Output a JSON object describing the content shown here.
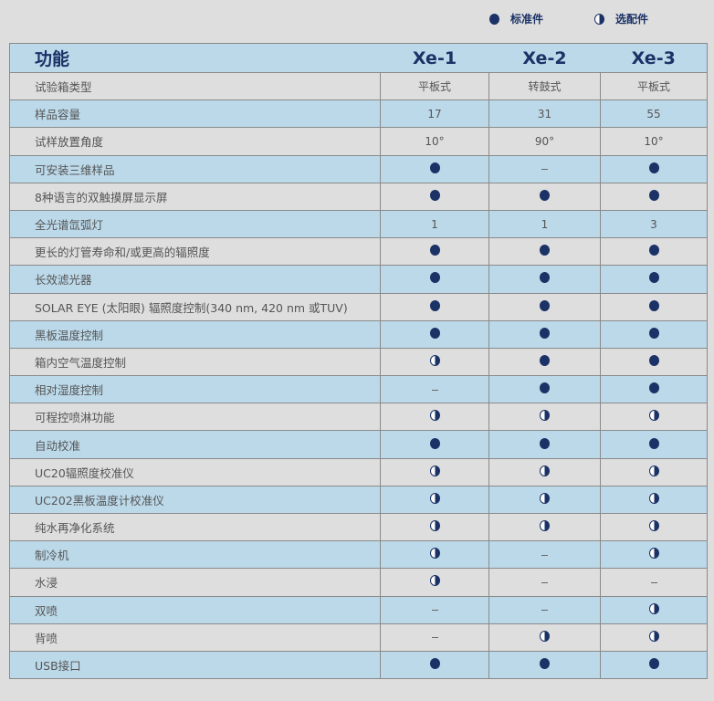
{
  "legend": {
    "standard": "标准件",
    "optional": "选配件"
  },
  "colors": {
    "accent": "#1b3266",
    "row_blue": "#bcd9ea",
    "row_grey": "#dedede"
  },
  "header": {
    "feature": "功能",
    "models": [
      "Xe-1",
      "Xe-2",
      "Xe-3"
    ]
  },
  "symbols": {
    "full": "standard (filled circle)",
    "half": "optional (half circle)",
    "dash": "not available"
  },
  "rows": [
    {
      "name": "试验箱类型",
      "values": [
        "平板式",
        "转鼓式",
        "平板式"
      ]
    },
    {
      "name": "样品容量",
      "values": [
        "17",
        "31",
        "55"
      ]
    },
    {
      "name": "试样放置角度",
      "values": [
        "10°",
        "90°",
        "10°"
      ]
    },
    {
      "name": "可安装三维样品",
      "values": [
        "full",
        "dash",
        "full"
      ]
    },
    {
      "name": "8种语言的双触摸屏显示屏",
      "values": [
        "full",
        "full",
        "full"
      ]
    },
    {
      "name": "全光谱氙弧灯",
      "values": [
        "1",
        "1",
        "3"
      ]
    },
    {
      "name": "更长的灯管寿命和/或更高的辐照度",
      "values": [
        "full",
        "full",
        "full"
      ]
    },
    {
      "name": "长效滤光器",
      "values": [
        "full",
        "full",
        "full"
      ]
    },
    {
      "name": "SOLAR EYE (太阳眼) 辐照度控制(340 nm, 420 nm 或TUV)",
      "values": [
        "full",
        "full",
        "full"
      ]
    },
    {
      "name": "黑板温度控制",
      "values": [
        "full",
        "full",
        "full"
      ]
    },
    {
      "name": "箱内空气温度控制",
      "values": [
        "half",
        "full",
        "full"
      ]
    },
    {
      "name": "相对湿度控制",
      "values": [
        "dash",
        "full",
        "full"
      ]
    },
    {
      "name": "可程控喷淋功能",
      "values": [
        "half",
        "half",
        "half"
      ]
    },
    {
      "name": "自动校准",
      "values": [
        "full",
        "full",
        "full"
      ]
    },
    {
      "name": "UC20辐照度校准仪",
      "values": [
        "half",
        "half",
        "half"
      ]
    },
    {
      "name": "UC202黑板温度计校准仪",
      "values": [
        "half",
        "half",
        "half"
      ]
    },
    {
      "name": "纯水再净化系统",
      "values": [
        "half",
        "half",
        "half"
      ]
    },
    {
      "name": "制冷机",
      "values": [
        "half",
        "dash",
        "half"
      ]
    },
    {
      "name": "水浸",
      "values": [
        "half",
        "dash",
        "dash"
      ]
    },
    {
      "name": "双喷",
      "values": [
        "dash",
        "dash",
        "half"
      ]
    },
    {
      "name": "背喷",
      "values": [
        "dash",
        "half",
        "half"
      ]
    },
    {
      "name": "USB接口",
      "values": [
        "full",
        "full",
        "full"
      ]
    }
  ]
}
